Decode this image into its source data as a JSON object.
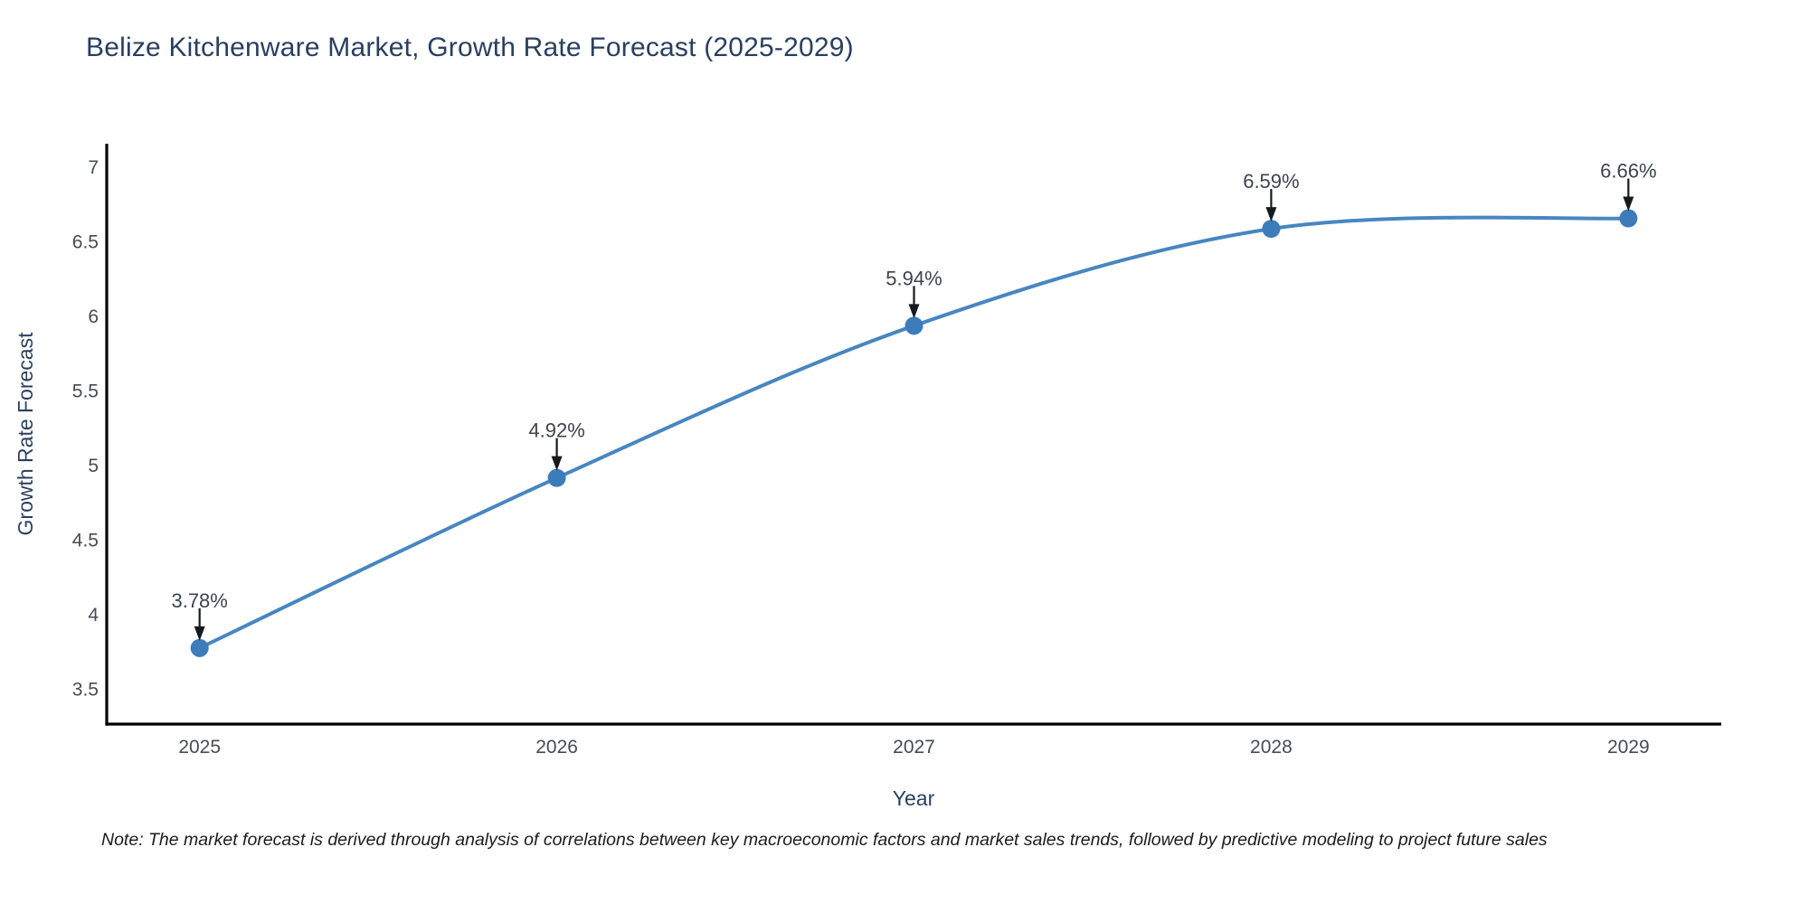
{
  "header": {
    "title": "Belize Kitchenware Market, Growth Rate Forecast (2025-2029)"
  },
  "footnote": {
    "text": "Note: The market forecast is derived through analysis of correlations between key macroeconomic factors and market sales trends, followed by predictive modeling to project future sales"
  },
  "chart_data": {
    "type": "line",
    "title": "Belize Kitchenware Market, Growth Rate Forecast (2025-2029)",
    "x": [
      2025,
      2026,
      2027,
      2028,
      2029
    ],
    "xticklabels": [
      "2025",
      "2026",
      "2027",
      "2028",
      "2029"
    ],
    "series": [
      {
        "name": "Growth Rate Forecast",
        "values": [
          3.78,
          4.92,
          5.94,
          6.59,
          6.66
        ]
      }
    ],
    "point_labels": [
      "3.78%",
      "4.92%",
      "5.94%",
      "6.59%",
      "6.66%"
    ],
    "xlabel": "Year",
    "ylabel": "Growth Rate Forecast",
    "yticks": [
      3.5,
      4,
      4.5,
      5,
      5.5,
      6,
      6.5,
      7
    ],
    "ylim": [
      3.27,
      7.16
    ],
    "xlim": [
      2024.74,
      2029.26
    ],
    "grid": false,
    "legend": "none",
    "line_shape": "spline",
    "marker": "circle"
  },
  "colors": {
    "line": "#4886c0",
    "marker": "#3d7cba",
    "title": "#2a3f5f",
    "axis_title": "#2a3f5f",
    "tick": "#474b55",
    "annotation_text": "#3e434d",
    "arrow": "#16191d",
    "spine": "#000000",
    "background": "#ffffff",
    "note": "#1c1c1c"
  }
}
